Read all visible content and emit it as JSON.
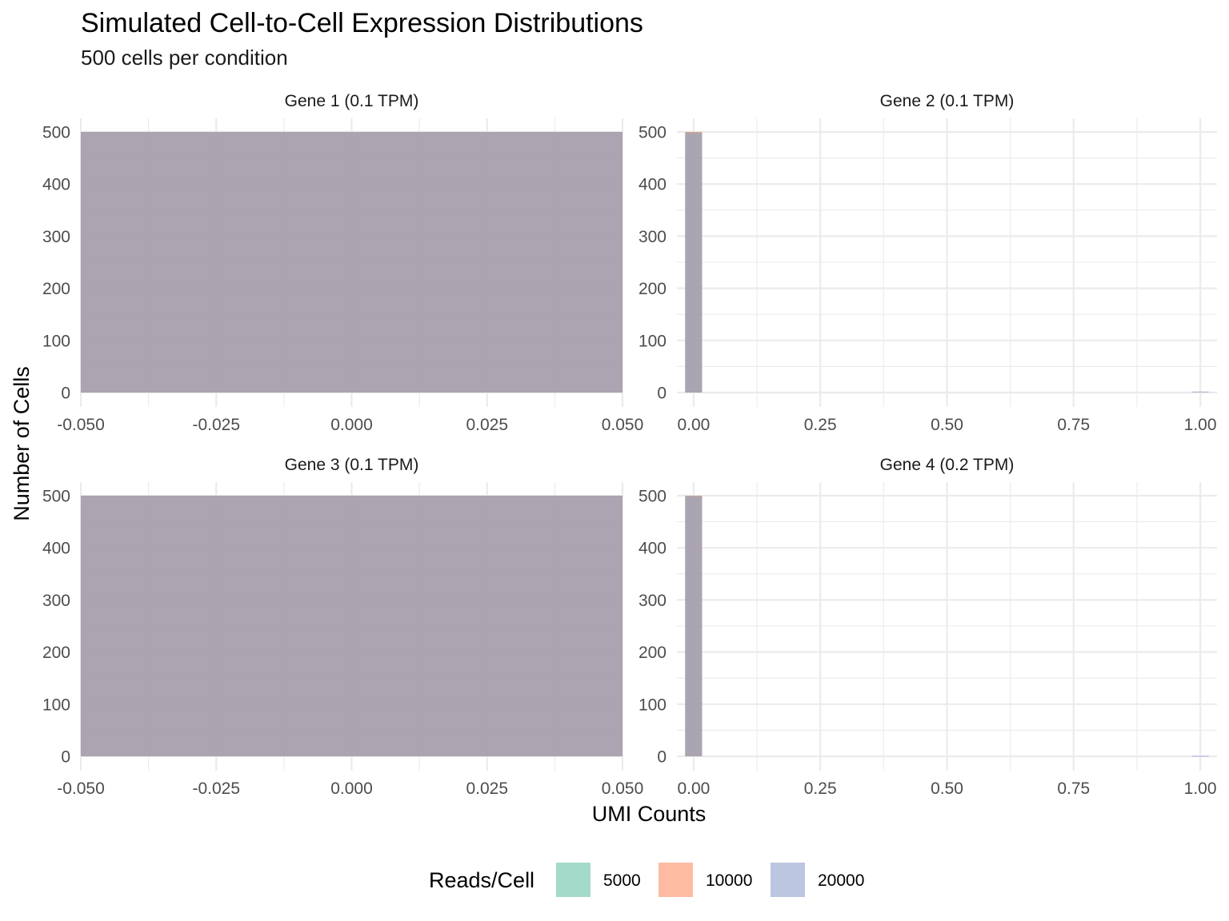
{
  "chart_data": {
    "type": "histogram-facets",
    "title": "Simulated Cell-to-Cell Expression Distributions",
    "subtitle": "500 cells per condition",
    "xlabel": "UMI Counts",
    "ylabel": "Number of Cells",
    "grid": true,
    "legend": {
      "title": "Reads/Cell",
      "position": "bottom",
      "entries": [
        {
          "name": "5000",
          "color": "#66C2A5"
        },
        {
          "name": "10000",
          "color": "#FC8D62"
        },
        {
          "name": "20000",
          "color": "#8DA0CB"
        }
      ]
    },
    "fill_alpha": 0.6,
    "facets": [
      {
        "label": "Gene 1 (0.1 TPM)",
        "xlim": [
          -0.05,
          0.05
        ],
        "ylim": [
          0,
          500
        ],
        "xticks": [
          -0.05,
          -0.025,
          0,
          0.025,
          0.05
        ],
        "xtick_labels": [
          "-0.050",
          "-0.025",
          "0.000",
          "0.025",
          "0.050"
        ],
        "yticks": [
          0,
          100,
          200,
          300,
          400,
          500
        ],
        "ytick_labels": [
          "0",
          "100",
          "200",
          "300",
          "400",
          "500"
        ],
        "bars": [
          {
            "series": "5000",
            "x0": -0.05,
            "x1": 0.05,
            "count": 500
          },
          {
            "series": "10000",
            "x0": -0.05,
            "x1": 0.05,
            "count": 500
          },
          {
            "series": "20000",
            "x0": -0.05,
            "x1": 0.05,
            "count": 500
          }
        ]
      },
      {
        "label": "Gene 2 (0.1 TPM)",
        "xlim": [
          -0.033,
          1.033
        ],
        "ylim": [
          0,
          500
        ],
        "xticks": [
          0,
          0.25,
          0.5,
          0.75,
          1
        ],
        "xtick_labels": [
          "0.00",
          "0.25",
          "0.50",
          "0.75",
          "1.00"
        ],
        "yticks": [
          0,
          100,
          200,
          300,
          400,
          500
        ],
        "ytick_labels": [
          "0",
          "100",
          "200",
          "300",
          "400",
          "500"
        ],
        "bars": [
          {
            "series": "5000",
            "x0": -0.0167,
            "x1": 0.0167,
            "count": 500
          },
          {
            "series": "10000",
            "x0": -0.0167,
            "x1": 0.0167,
            "count": 500
          },
          {
            "series": "20000",
            "x0": -0.0167,
            "x1": 0.0167,
            "count": 498
          },
          {
            "series": "20000",
            "x0": 0.9833,
            "x1": 1.0167,
            "count": 2
          }
        ]
      },
      {
        "label": "Gene 3 (0.1 TPM)",
        "xlim": [
          -0.05,
          0.05
        ],
        "ylim": [
          0,
          500
        ],
        "xticks": [
          -0.05,
          -0.025,
          0,
          0.025,
          0.05
        ],
        "xtick_labels": [
          "-0.050",
          "-0.025",
          "0.000",
          "0.025",
          "0.050"
        ],
        "yticks": [
          0,
          100,
          200,
          300,
          400,
          500
        ],
        "ytick_labels": [
          "0",
          "100",
          "200",
          "300",
          "400",
          "500"
        ],
        "bars": [
          {
            "series": "5000",
            "x0": -0.05,
            "x1": 0.05,
            "count": 500
          },
          {
            "series": "10000",
            "x0": -0.05,
            "x1": 0.05,
            "count": 500
          },
          {
            "series": "20000",
            "x0": -0.05,
            "x1": 0.05,
            "count": 500
          }
        ]
      },
      {
        "label": "Gene 4 (0.2 TPM)",
        "xlim": [
          -0.033,
          1.033
        ],
        "ylim": [
          0,
          500
        ],
        "xticks": [
          0,
          0.25,
          0.5,
          0.75,
          1
        ],
        "xtick_labels": [
          "0.00",
          "0.25",
          "0.50",
          "0.75",
          "1.00"
        ],
        "yticks": [
          0,
          100,
          200,
          300,
          400,
          500
        ],
        "ytick_labels": [
          "0",
          "100",
          "200",
          "300",
          "400",
          "500"
        ],
        "bars": [
          {
            "series": "5000",
            "x0": -0.0167,
            "x1": 0.0167,
            "count": 500
          },
          {
            "series": "10000",
            "x0": -0.0167,
            "x1": 0.0167,
            "count": 500
          },
          {
            "series": "20000",
            "x0": -0.0167,
            "x1": 0.0167,
            "count": 499
          },
          {
            "series": "20000",
            "x0": 0.9833,
            "x1": 1.0167,
            "count": 1
          }
        ]
      }
    ]
  }
}
